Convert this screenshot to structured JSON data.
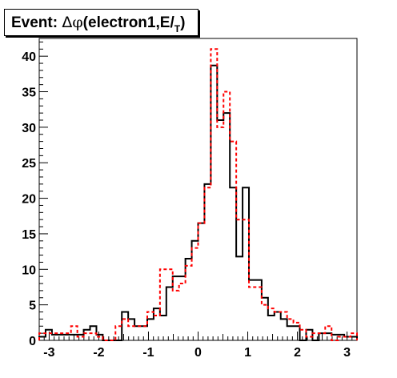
{
  "chart_data": {
    "type": "bar",
    "title_parts": {
      "prefix": "Event: ",
      "delta": "Δ",
      "phi": "φ",
      "mid": "(electron1,",
      "met": "E/",
      "sub": "T",
      "close": ")"
    },
    "xlabel": "",
    "ylabel": "",
    "xlim": [
      -3.2,
      3.2
    ],
    "ylim": [
      0,
      42.5
    ],
    "grid": false,
    "bin_width": 0.128,
    "x_ticks": [
      -3,
      -2,
      -1,
      0,
      1,
      2,
      3
    ],
    "y_ticks": [
      0,
      5,
      10,
      15,
      20,
      25,
      30,
      35,
      40
    ],
    "series": [
      {
        "style": "solid",
        "color": "#000000",
        "values": [
          0.5,
          1.5,
          0.8,
          0.8,
          0.8,
          0.8,
          0.8,
          1.5,
          2,
          0.8,
          0,
          0,
          0,
          4,
          3,
          2,
          2,
          3,
          4.5,
          3.5,
          7.5,
          9,
          9,
          11.5,
          14,
          16.5,
          22,
          38.7,
          31,
          32,
          21.5,
          11.8,
          21.5,
          8.5,
          8.5,
          6,
          3.5,
          4,
          3,
          2,
          2,
          0,
          1.5,
          0,
          1,
          1,
          0.8,
          0.8,
          0.5,
          0.5
        ]
      },
      {
        "style": "dashed",
        "color": "#ff0000",
        "values": [
          1,
          1,
          1,
          1,
          1,
          2,
          0.5,
          1,
          1,
          0.5,
          0,
          0,
          2,
          3,
          2,
          2,
          2,
          4,
          3.5,
          10,
          10,
          7,
          8,
          10.5,
          13,
          16.5,
          21.5,
          41,
          30,
          35,
          28,
          17,
          17,
          7.5,
          7.5,
          5,
          4.5,
          4,
          4,
          3,
          2.5,
          1.5,
          0.5,
          1,
          1,
          2,
          0,
          0.5,
          0.5,
          1
        ]
      }
    ]
  }
}
